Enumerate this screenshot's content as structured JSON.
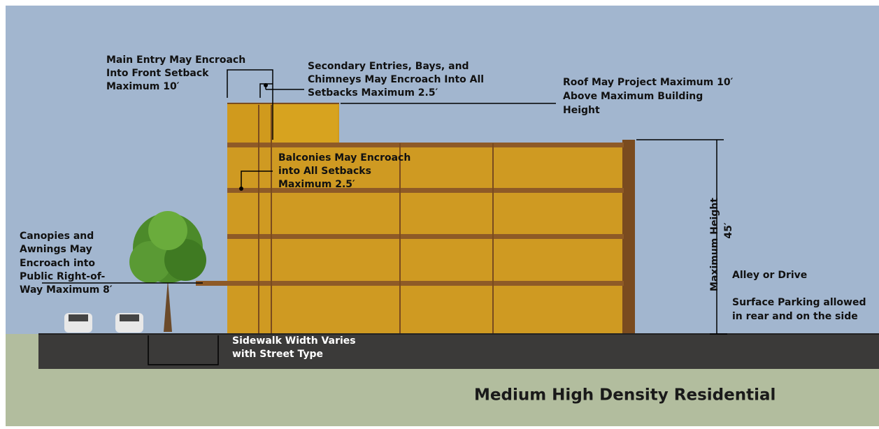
{
  "annotations": {
    "main_entry": [
      "Main Entry May Encroach",
      "Into Front Setback",
      "Maximum  10′"
    ],
    "secondary_entries": [
      "Secondary Entries, Bays, and",
      "Chimneys May Encroach Into All",
      "Setbacks  Maximum 2.5′"
    ],
    "roof": [
      "Roof May Project Maximum 10′",
      "Above Maximum Building",
      "Height"
    ],
    "balconies": [
      "Balconies May Encroach",
      "into All Setbacks",
      "Maximum 2.5′"
    ],
    "canopies": [
      "Canopies and",
      "Awnings May",
      "Encroach into",
      "Public Right-of-",
      "Way Maximum 8′"
    ],
    "max_height": [
      "Maximum Height",
      "45′"
    ],
    "alley": "Alley or Drive",
    "parking": [
      "Surface Parking allowed",
      "in rear and on the side"
    ],
    "sidewalk": [
      "Sidewalk Width Varies",
      "with Street Type"
    ]
  },
  "title": "Medium High Density Residential"
}
